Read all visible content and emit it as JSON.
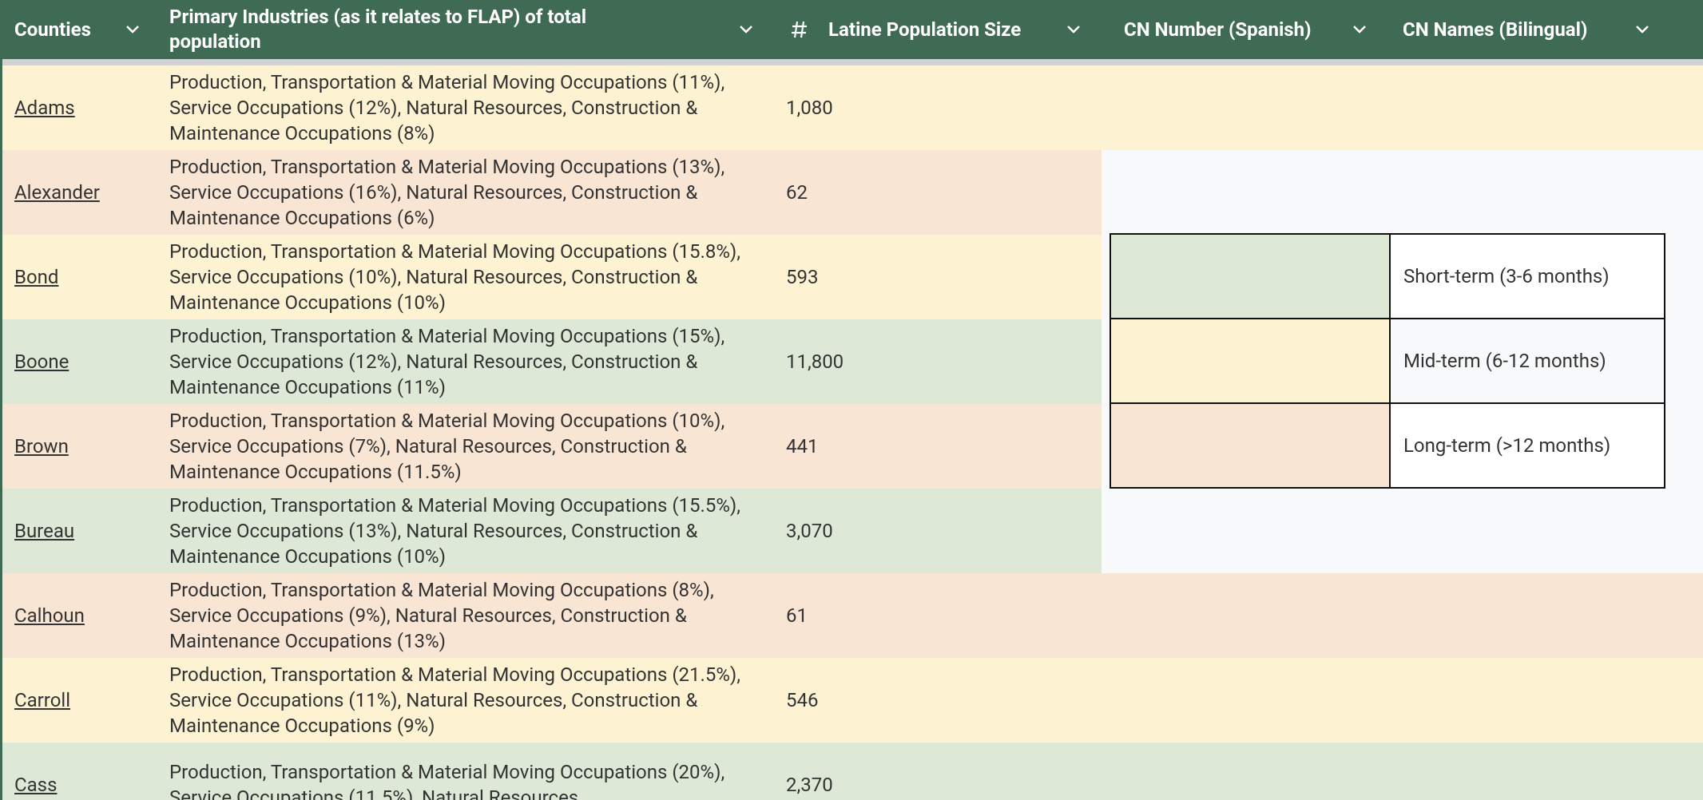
{
  "table": {
    "columns": [
      "Counties",
      "Primary Industries (as it relates to FLAP) of total population",
      "Latine Population Size",
      "CN Number (Spanish)",
      "CN Names (Bilingual)"
    ],
    "rows": [
      {
        "county": "Adams",
        "industries": "Production, Transportation & Material Moving Occupations (11%), Service Occupations (12%), Natural Resources, Construction & Maintenance Occupations (8%)",
        "population": "1,080",
        "color": "#fdf3d3"
      },
      {
        "county": "Alexander",
        "industries": "Production, Transportation & Material Moving Occupations (13%), Service Occupations (16%), Natural Resources, Construction & Maintenance Occupations (6%)",
        "population": "62",
        "color": "#f9e5d3"
      },
      {
        "county": "Bond",
        "industries": "Production, Transportation & Material Moving Occupations (15.8%), Service Occupations (10%), Natural Resources, Construction & Maintenance Occupations (10%)",
        "population": "593",
        "color": "#fdf3d3"
      },
      {
        "county": "Boone",
        "industries": "Production, Transportation & Material Moving Occupations (15%), Service Occupations (12%), Natural Resources, Construction & Maintenance Occupations (11%)",
        "population": "11,800",
        "color": "#dde9d6"
      },
      {
        "county": "Brown",
        "industries": "Production, Transportation & Material Moving Occupations (10%), Service Occupations (7%), Natural Resources, Construction & Maintenance Occupations (11.5%)",
        "population": "441",
        "color": "#f9e5d3"
      },
      {
        "county": "Bureau",
        "industries": "Production, Transportation & Material Moving Occupations (15.5%), Service Occupations (13%), Natural Resources, Construction & Maintenance Occupations (10%)",
        "population": "3,070",
        "color": "#dde9d6"
      },
      {
        "county": "Calhoun",
        "industries": "Production, Transportation & Material Moving Occupations (8%), Service Occupations (9%), Natural Resources, Construction & Maintenance Occupations (13%)",
        "population": "61",
        "color": "#f9e5d3"
      },
      {
        "county": "Carroll",
        "industries": "Production, Transportation & Material Moving Occupations (21.5%), Service Occupations (11%), Natural Resources, Construction & Maintenance Occupations (9%)",
        "population": "546",
        "color": "#fdf3d3"
      },
      {
        "county": "Cass",
        "industries": "Production, Transportation & Material Moving Occupations (20%), Service Occupations (11.5%), Natural Resources,",
        "population": "2,370",
        "color": "#dde9d6"
      }
    ]
  },
  "legend": [
    {
      "label": "Short-term (3-6 months)",
      "color": "#dde9d6"
    },
    {
      "label": "Mid-term (6-12 months)",
      "color": "#fdf3d3"
    },
    {
      "label": "Long-term (>12 months)",
      "color": "#f9e5d3"
    }
  ]
}
